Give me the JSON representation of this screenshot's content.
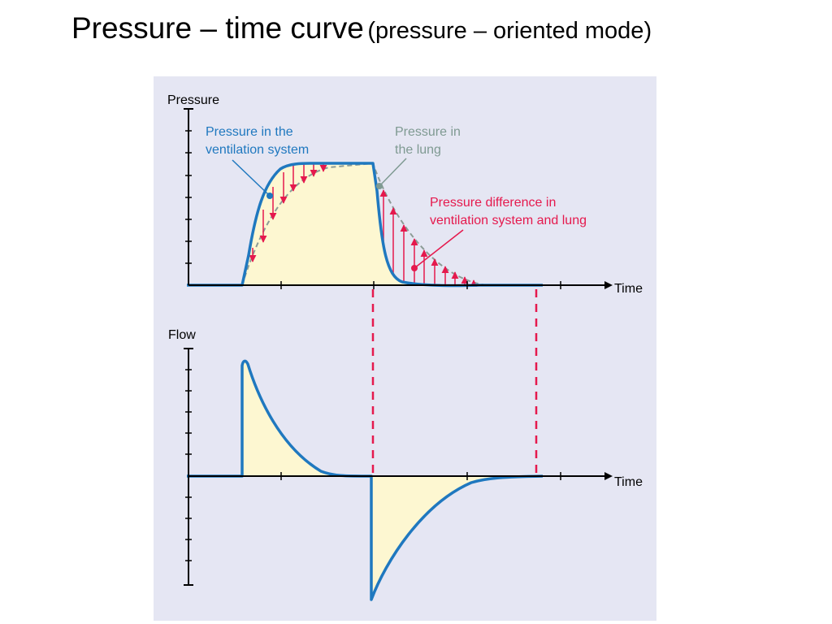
{
  "title": {
    "main": "Pressure – time curve",
    "sub": "(pressure – oriented mode)"
  },
  "colors": {
    "panel": "#e5e6f3",
    "fill": "#fdf7d1",
    "curve": "#1f78bf",
    "lung": "#7f9a92",
    "difference": "#e5194d",
    "axis": "#000000"
  },
  "top_plot": {
    "y_label": "Pressure",
    "x_label": "Time",
    "annotations": {
      "system": [
        "Pressure in the",
        "ventilation system"
      ],
      "lung": [
        "Pressure in",
        "the lung"
      ],
      "difference": [
        "Pressure difference in",
        "ventilation system and lung"
      ]
    }
  },
  "bottom_plot": {
    "y_label": "Flow",
    "x_label": "Time"
  }
}
